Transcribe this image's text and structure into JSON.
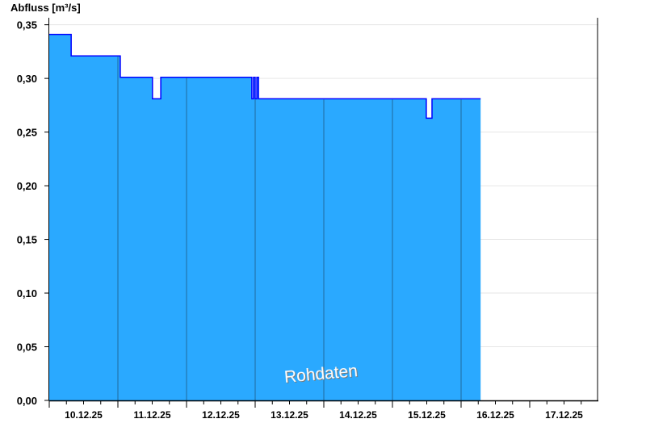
{
  "chart_data": {
    "type": "area",
    "step": true,
    "ylabel": "Abfluss [m³/s]",
    "ylim": [
      0,
      0.3565
    ],
    "yticks": [
      "0,00",
      "0,05",
      "0,10",
      "0,15",
      "0,20",
      "0,25",
      "0,30",
      "0,35"
    ],
    "ytick_values": [
      0,
      0.05,
      0.1,
      0.15,
      0.2,
      0.25,
      0.3,
      0.35
    ],
    "xlim": [
      "2025-12-10T00:00",
      "2025-12-18T00:00"
    ],
    "xtick_labels": [
      "10.12.25",
      "11.12.25",
      "12.12.25",
      "13.12.25",
      "14.12.25",
      "15.12.25",
      "16.12.25",
      "17.12.25"
    ],
    "grid": {
      "horizontal": true,
      "vertical": "day boundaries (data area only)"
    },
    "watermark": "Rohdaten",
    "colors": {
      "fill": "#2aa9ff",
      "line": "#0000ff",
      "grid": "#e6e6e6",
      "day_line": "#1f5a85"
    },
    "points": [
      [
        "2025-12-10T00:00",
        0.341
      ],
      [
        "2025-12-10T07:40",
        0.321
      ],
      [
        "2025-12-11T00:50",
        0.301
      ],
      [
        "2025-12-11T12:05",
        0.281
      ],
      [
        "2025-12-11T15:00",
        0.301
      ],
      [
        "2025-12-12T22:50",
        0.281
      ],
      [
        "2025-12-12T23:25",
        0.301
      ],
      [
        "2025-12-13T00:00",
        0.281
      ],
      [
        "2025-12-13T00:35",
        0.301
      ],
      [
        "2025-12-13T01:10",
        0.281
      ],
      [
        "2025-12-15T11:50",
        0.263
      ],
      [
        "2025-12-15T13:50",
        0.281
      ],
      [
        "2025-12-16T06:50",
        0.281
      ]
    ]
  }
}
